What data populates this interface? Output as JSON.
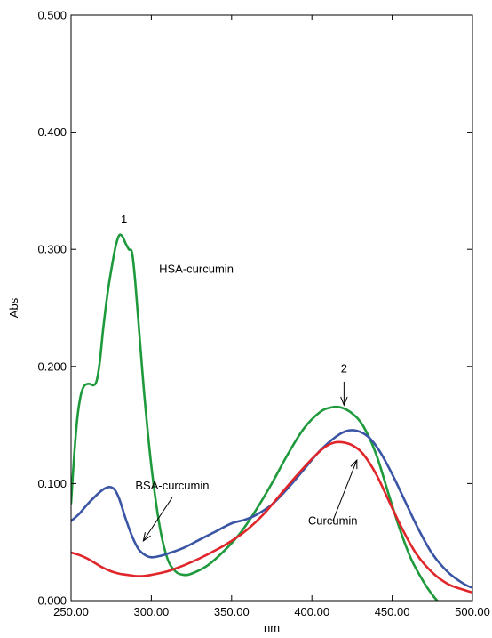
{
  "chart_data": {
    "type": "line",
    "title": "",
    "xlabel": "nm",
    "ylabel": "Abs",
    "xlim": [
      250,
      500
    ],
    "ylim": [
      0,
      0.5
    ],
    "x_ticks": [
      250,
      300,
      350,
      400,
      450,
      500
    ],
    "x_tick_labels": [
      "250.00",
      "300.00",
      "350.00",
      "400.00",
      "450.00",
      "500.00"
    ],
    "y_ticks": [
      0,
      0.1,
      0.2,
      0.3,
      0.4,
      0.5
    ],
    "y_tick_labels": [
      "0.000",
      "0.100",
      "0.200",
      "0.300",
      "0.400",
      "0.500"
    ],
    "grid": false,
    "legend": "none",
    "series": [
      {
        "name": "HSA-curcumin",
        "color": "#1e9a3c",
        "points": [
          [
            250,
            0.083
          ],
          [
            252,
            0.125
          ],
          [
            254,
            0.157
          ],
          [
            256,
            0.175
          ],
          [
            258,
            0.183
          ],
          [
            260,
            0.185
          ],
          [
            262,
            0.185
          ],
          [
            264,
            0.184
          ],
          [
            266,
            0.188
          ],
          [
            268,
            0.205
          ],
          [
            270,
            0.232
          ],
          [
            273,
            0.265
          ],
          [
            276,
            0.29
          ],
          [
            278,
            0.304
          ],
          [
            280,
            0.312
          ],
          [
            282,
            0.311
          ],
          [
            284,
            0.305
          ],
          [
            286,
            0.3
          ],
          [
            288,
            0.297
          ],
          [
            290,
            0.272
          ],
          [
            293,
            0.22
          ],
          [
            296,
            0.17
          ],
          [
            300,
            0.115
          ],
          [
            305,
            0.065
          ],
          [
            310,
            0.036
          ],
          [
            315,
            0.025
          ],
          [
            320,
            0.022
          ],
          [
            325,
            0.023
          ],
          [
            335,
            0.03
          ],
          [
            345,
            0.042
          ],
          [
            355,
            0.057
          ],
          [
            365,
            0.077
          ],
          [
            375,
            0.1
          ],
          [
            385,
            0.125
          ],
          [
            395,
            0.147
          ],
          [
            405,
            0.161
          ],
          [
            412,
            0.165
          ],
          [
            418,
            0.165
          ],
          [
            425,
            0.16
          ],
          [
            432,
            0.149
          ],
          [
            440,
            0.125
          ],
          [
            448,
            0.09
          ],
          [
            455,
            0.06
          ],
          [
            462,
            0.035
          ],
          [
            470,
            0.015
          ],
          [
            475,
            0.005
          ],
          [
            478,
            0.0
          ]
        ]
      },
      {
        "name": "BSA-curcumin",
        "color": "#3a55a4",
        "points": [
          [
            250,
            0.068
          ],
          [
            255,
            0.074
          ],
          [
            260,
            0.082
          ],
          [
            265,
            0.089
          ],
          [
            270,
            0.095
          ],
          [
            274,
            0.097
          ],
          [
            277,
            0.095
          ],
          [
            280,
            0.087
          ],
          [
            284,
            0.07
          ],
          [
            288,
            0.055
          ],
          [
            292,
            0.044
          ],
          [
            296,
            0.039
          ],
          [
            300,
            0.037
          ],
          [
            305,
            0.038
          ],
          [
            310,
            0.04
          ],
          [
            320,
            0.045
          ],
          [
            330,
            0.052
          ],
          [
            340,
            0.059
          ],
          [
            350,
            0.066
          ],
          [
            358,
            0.069
          ],
          [
            365,
            0.073
          ],
          [
            375,
            0.082
          ],
          [
            385,
            0.096
          ],
          [
            395,
            0.112
          ],
          [
            405,
            0.128
          ],
          [
            415,
            0.14
          ],
          [
            422,
            0.145
          ],
          [
            428,
            0.145
          ],
          [
            435,
            0.14
          ],
          [
            442,
            0.128
          ],
          [
            450,
            0.108
          ],
          [
            458,
            0.085
          ],
          [
            466,
            0.062
          ],
          [
            475,
            0.04
          ],
          [
            485,
            0.024
          ],
          [
            495,
            0.014
          ],
          [
            500,
            0.011
          ]
        ]
      },
      {
        "name": "Curcumin",
        "color": "#e0262a",
        "points": [
          [
            250,
            0.041
          ],
          [
            255,
            0.039
          ],
          [
            260,
            0.036
          ],
          [
            265,
            0.032
          ],
          [
            270,
            0.028
          ],
          [
            275,
            0.025
          ],
          [
            280,
            0.023
          ],
          [
            285,
            0.022
          ],
          [
            290,
            0.021
          ],
          [
            295,
            0.021
          ],
          [
            300,
            0.022
          ],
          [
            310,
            0.025
          ],
          [
            320,
            0.03
          ],
          [
            330,
            0.036
          ],
          [
            340,
            0.043
          ],
          [
            350,
            0.051
          ],
          [
            360,
            0.061
          ],
          [
            370,
            0.074
          ],
          [
            380,
            0.09
          ],
          [
            390,
            0.106
          ],
          [
            400,
            0.121
          ],
          [
            408,
            0.131
          ],
          [
            414,
            0.135
          ],
          [
            420,
            0.135
          ],
          [
            426,
            0.132
          ],
          [
            432,
            0.125
          ],
          [
            440,
            0.108
          ],
          [
            448,
            0.085
          ],
          [
            456,
            0.062
          ],
          [
            465,
            0.04
          ],
          [
            475,
            0.024
          ],
          [
            485,
            0.014
          ],
          [
            495,
            0.009
          ],
          [
            500,
            0.007
          ]
        ]
      }
    ],
    "annotations": [
      {
        "text": "1",
        "x": 283,
        "y": 0.322
      },
      {
        "text": "2",
        "x": 420,
        "y": 0.195
      },
      {
        "text": "HSA-curcumin",
        "x": 328,
        "y": 0.28
      },
      {
        "text": "BSA-curcumin",
        "x": 313,
        "y": 0.095
      },
      {
        "text": "Curcumin",
        "x": 413,
        "y": 0.065
      }
    ],
    "arrows": [
      {
        "from": [
          420,
          0.187
        ],
        "to": [
          420,
          0.167
        ]
      },
      {
        "from": [
          313,
          0.088
        ],
        "to": [
          295,
          0.051
        ]
      },
      {
        "from": [
          413,
          0.068
        ],
        "to": [
          428,
          0.12
        ]
      }
    ]
  }
}
